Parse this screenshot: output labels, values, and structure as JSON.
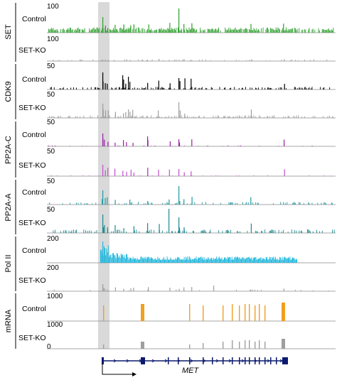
{
  "chart_data": {
    "type": "genome-browser-tracks",
    "gene": "MET",
    "colors": {
      "SET": "#2ca02c",
      "CDK9": "#000000",
      "PP2A-C": "#9b1fa8",
      "PP2A-A": "#1f9aa3",
      "Pol II": "#21b7dd",
      "mRNA": "#f0a020",
      "SET-KO": "#9e9e9e",
      "highlight": "#d9d9d9"
    },
    "groups": [
      {
        "name": "SET",
        "tracks": [
          {
            "condition": "Control",
            "max": "100",
            "color": "#2ca02c"
          },
          {
            "condition": "SET-KO",
            "max": "100",
            "color": "#9e9e9e"
          }
        ]
      },
      {
        "name": "CDK9",
        "tracks": [
          {
            "condition": "Control",
            "max": "50",
            "color": "#000000"
          },
          {
            "condition": "SET-KO",
            "max": "50",
            "color": "#9e9e9e"
          }
        ]
      },
      {
        "name": "PP2A-C",
        "tracks": [
          {
            "condition": "Control",
            "max": "50",
            "color": "#9b1fa8"
          },
          {
            "condition": "SET-KO",
            "max": "50",
            "color": "#c14fd0"
          }
        ]
      },
      {
        "name": "PP2A-A",
        "tracks": [
          {
            "condition": "Control",
            "max": "50",
            "color": "#1f9aa3"
          },
          {
            "condition": "SET-KO",
            "max": "50",
            "color": "#1a8a92"
          }
        ]
      },
      {
        "name": "Pol II",
        "tracks": [
          {
            "condition": "Control",
            "max": "200",
            "color": "#21b7dd"
          },
          {
            "condition": "SET-KO",
            "max": "200",
            "color": "#9e9e9e"
          }
        ]
      },
      {
        "name": "mRNA",
        "tracks": [
          {
            "condition": "Control",
            "max": "1000",
            "color": "#f0a020"
          },
          {
            "condition": "SET-KO",
            "max": "1000",
            "color": "#9e9e9e"
          }
        ]
      }
    ],
    "bottom_scale_label": "0"
  }
}
